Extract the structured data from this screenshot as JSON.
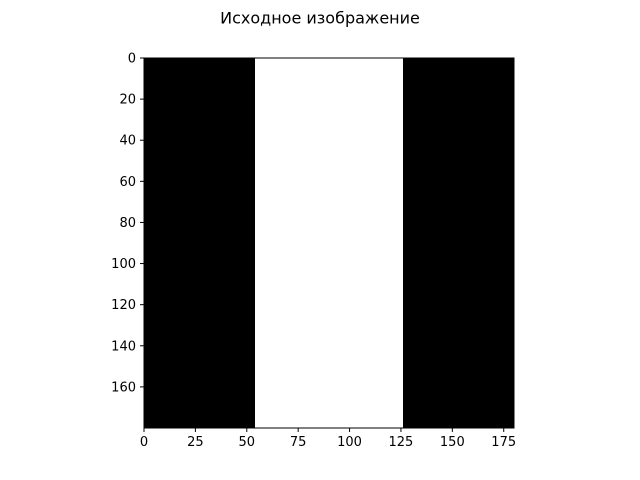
{
  "chart_data": {
    "type": "heatmap",
    "title": "Исходное изображение",
    "xlabel": "",
    "ylabel": "",
    "image_width": 180,
    "image_height": 180,
    "xlim": [
      0,
      180
    ],
    "ylim": [
      180,
      0
    ],
    "x_ticks": [
      0,
      25,
      50,
      75,
      100,
      125,
      150,
      175
    ],
    "y_ticks": [
      0,
      20,
      40,
      60,
      80,
      100,
      120,
      140,
      160
    ],
    "grid": false,
    "colormap": "gray",
    "background_color": "#000000",
    "bands": [
      {
        "x_start": 54,
        "x_end": 126,
        "y_start": 0,
        "y_end": 180,
        "value": 1,
        "color": "#ffffff"
      }
    ]
  }
}
